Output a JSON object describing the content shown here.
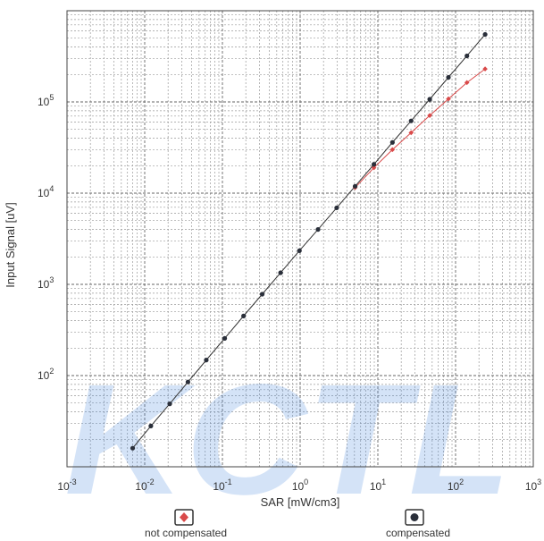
{
  "chart_data": {
    "type": "line",
    "xlabel": "SAR [mW/cm3]",
    "ylabel": "Input Signal [uV]",
    "xscale": "log",
    "yscale": "log",
    "xlim": [
      0.001,
      1000
    ],
    "ylim": [
      10,
      1000000
    ],
    "grid": true,
    "x_ticks": [
      {
        "base": "10",
        "exp": "-3"
      },
      {
        "base": "10",
        "exp": "-2"
      },
      {
        "base": "10",
        "exp": "-1"
      },
      {
        "base": "10",
        "exp": "0"
      },
      {
        "base": "10",
        "exp": "1"
      },
      {
        "base": "10",
        "exp": "2"
      },
      {
        "base": "10",
        "exp": "3"
      }
    ],
    "y_ticks": [
      {
        "value": 100,
        "base": "10",
        "exp": "2"
      },
      {
        "value": 1000,
        "base": "10",
        "exp": "3"
      },
      {
        "value": 10000,
        "base": "10",
        "exp": "4"
      },
      {
        "value": 100000,
        "base": "10",
        "exp": "5"
      }
    ],
    "series": [
      {
        "name": "compensated",
        "color": "#333333",
        "marker": "circle",
        "points": [
          {
            "x": 0.007,
            "y": 16
          },
          {
            "x": 0.012,
            "y": 28
          },
          {
            "x": 0.021,
            "y": 49
          },
          {
            "x": 0.036,
            "y": 85
          },
          {
            "x": 0.062,
            "y": 148
          },
          {
            "x": 0.107,
            "y": 256
          },
          {
            "x": 0.187,
            "y": 450
          },
          {
            "x": 0.325,
            "y": 780
          },
          {
            "x": 0.56,
            "y": 1340
          },
          {
            "x": 0.98,
            "y": 2340
          },
          {
            "x": 1.7,
            "y": 4000
          },
          {
            "x": 2.95,
            "y": 6900
          },
          {
            "x": 5.1,
            "y": 11900
          },
          {
            "x": 8.9,
            "y": 20700
          },
          {
            "x": 15.4,
            "y": 36000
          },
          {
            "x": 26.8,
            "y": 62000
          },
          {
            "x": 46.5,
            "y": 107000
          },
          {
            "x": 81,
            "y": 186000
          },
          {
            "x": 140,
            "y": 320000
          },
          {
            "x": 240,
            "y": 550000
          }
        ]
      },
      {
        "name": "not compensated",
        "color": "#d94a4a",
        "marker": "diamond",
        "points": [
          {
            "x": 5.1,
            "y": 11500
          },
          {
            "x": 8.9,
            "y": 19000
          },
          {
            "x": 15.4,
            "y": 30000
          },
          {
            "x": 26.8,
            "y": 46000
          },
          {
            "x": 46.5,
            "y": 71000
          },
          {
            "x": 81,
            "y": 108000
          },
          {
            "x": 140,
            "y": 163000
          },
          {
            "x": 240,
            "y": 230000
          }
        ]
      }
    ],
    "legend": {
      "placement": "bottom",
      "items": [
        {
          "label": "not compensated",
          "marker": "diamond",
          "color": "#d94a4a"
        },
        {
          "label": "compensated",
          "marker": "circle",
          "color": "#333333"
        }
      ]
    },
    "watermark": "KCTL"
  }
}
